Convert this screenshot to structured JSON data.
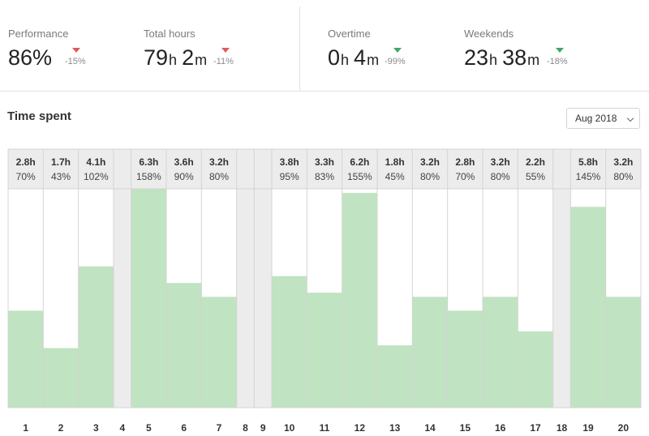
{
  "kpis": {
    "performance": {
      "label": "Performance",
      "value": "86%",
      "delta": "-15%",
      "trend_color": "#e05a5a"
    },
    "total_hours": {
      "label": "Total hours",
      "hours": "79",
      "minutes": "2",
      "hour_unit": "h",
      "minute_unit": "m",
      "delta": "-11%",
      "trend_color": "#e05a5a"
    },
    "overtime": {
      "label": "Overtime",
      "hours": "0",
      "minutes": "4",
      "hour_unit": "h",
      "minute_unit": "m",
      "delta": "-99%",
      "trend_color": "#3fa76a"
    },
    "weekends": {
      "label": "Weekends",
      "hours": "23",
      "minutes": "38",
      "hour_unit": "h",
      "minute_unit": "m",
      "delta": "-18%",
      "trend_color": "#3fa76a"
    }
  },
  "section": {
    "title": "Time spent"
  },
  "month_select": {
    "value": "Aug 2018"
  },
  "chart_data": {
    "type": "bar",
    "title": "Time spent",
    "bar_color": "#c0e3c1",
    "weekend_color": "#ececec",
    "ylim": [
      0,
      158
    ],
    "days": [
      {
        "day": "1",
        "hours": "2.8h",
        "percent": "70%",
        "value": 70,
        "weekend": false
      },
      {
        "day": "2",
        "hours": "1.7h",
        "percent": "43%",
        "value": 43,
        "weekend": false
      },
      {
        "day": "3",
        "hours": "4.1h",
        "percent": "102%",
        "value": 102,
        "weekend": false
      },
      {
        "day": "4",
        "hours": "",
        "percent": "",
        "value": 0,
        "weekend": true
      },
      {
        "day": "5",
        "hours": "6.3h",
        "percent": "158%",
        "value": 158,
        "weekend": false
      },
      {
        "day": "6",
        "hours": "3.6h",
        "percent": "90%",
        "value": 90,
        "weekend": false
      },
      {
        "day": "7",
        "hours": "3.2h",
        "percent": "80%",
        "value": 80,
        "weekend": false
      },
      {
        "day": "8",
        "hours": "",
        "percent": "",
        "value": 0,
        "weekend": true
      },
      {
        "day": "9",
        "hours": "",
        "percent": "",
        "value": 0,
        "weekend": true
      },
      {
        "day": "10",
        "hours": "3.8h",
        "percent": "95%",
        "value": 95,
        "weekend": false
      },
      {
        "day": "11",
        "hours": "3.3h",
        "percent": "83%",
        "value": 83,
        "weekend": false
      },
      {
        "day": "12",
        "hours": "6.2h",
        "percent": "155%",
        "value": 155,
        "weekend": false
      },
      {
        "day": "13",
        "hours": "1.8h",
        "percent": "45%",
        "value": 45,
        "weekend": false
      },
      {
        "day": "14",
        "hours": "3.2h",
        "percent": "80%",
        "value": 80,
        "weekend": false
      },
      {
        "day": "15",
        "hours": "2.8h",
        "percent": "70%",
        "value": 70,
        "weekend": false
      },
      {
        "day": "16",
        "hours": "3.2h",
        "percent": "80%",
        "value": 80,
        "weekend": false
      },
      {
        "day": "17",
        "hours": "2.2h",
        "percent": "55%",
        "value": 55,
        "weekend": false
      },
      {
        "day": "18",
        "hours": "",
        "percent": "",
        "value": 0,
        "weekend": true
      },
      {
        "day": "19",
        "hours": "5.8h",
        "percent": "145%",
        "value": 145,
        "weekend": false
      },
      {
        "day": "20",
        "hours": "3.2h",
        "percent": "80%",
        "value": 80,
        "weekend": false
      }
    ]
  }
}
